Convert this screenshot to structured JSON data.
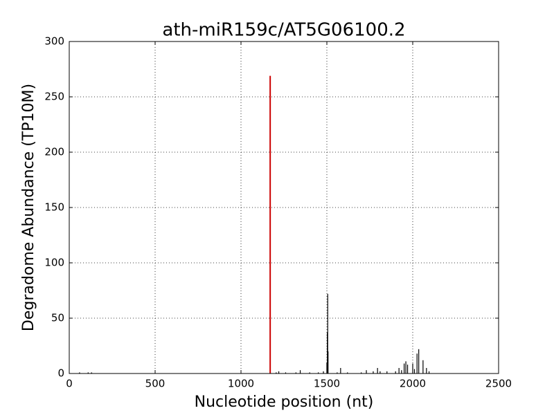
{
  "chart_data": {
    "type": "spike",
    "title": "ath-miR159c/AT5G06100.2",
    "x_label": "Nucleotide position (nt)",
    "y_label": "Degradome Abundance (TP10M)",
    "series": [
      {
        "color": "#000000",
        "x": [
          60,
          110,
          130,
          1205,
          1220,
          1260,
          1320,
          1345,
          1400,
          1450,
          1480,
          1500,
          1503,
          1505,
          1507,
          1560,
          1580,
          1620,
          1700,
          1730,
          1770,
          1795,
          1810,
          1850,
          1900,
          1920,
          1935,
          1950,
          1960,
          1970,
          2000,
          2010,
          2025,
          2035,
          2060,
          2080,
          2095
        ],
        "values": [
          1,
          1,
          1,
          1,
          2,
          1,
          1,
          3,
          1,
          1,
          2,
          10,
          37,
          72,
          20,
          1,
          5,
          1,
          1,
          3,
          2,
          5,
          2,
          2,
          2,
          5,
          3,
          9,
          11,
          8,
          9,
          4,
          18,
          22,
          12,
          5,
          2
        ]
      },
      {
        "color": "#cc0000",
        "x": [
          1170
        ],
        "values": [
          269
        ]
      }
    ],
    "xlim": [
      0,
      2500
    ],
    "xticks": [
      0,
      500,
      1000,
      1500,
      2000,
      2500
    ],
    "ylim": [
      0,
      300
    ],
    "yticks": [
      0,
      50,
      100,
      150,
      200,
      250,
      300
    ],
    "grid": true
  }
}
